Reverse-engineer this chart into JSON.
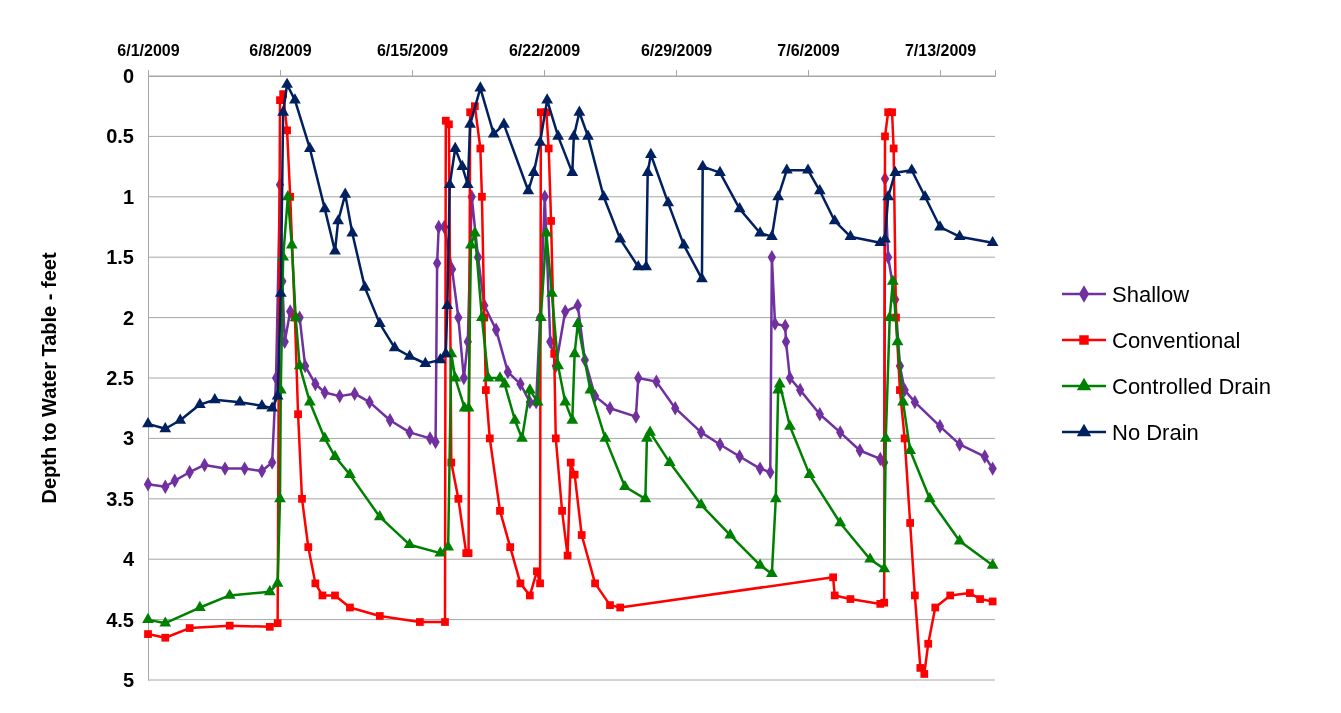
{
  "chart_data": {
    "type": "line",
    "ylabel": "Depth to Water Table - feet",
    "xlim": [
      "2009-06-01T00:00",
      "2009-07-15T22:00"
    ],
    "xticks": [
      {
        "value": "2009-06-01T00:00",
        "label": "6/1/2009"
      },
      {
        "value": "2009-06-08T00:00",
        "label": "6/8/2009"
      },
      {
        "value": "2009-06-15T00:00",
        "label": "6/15/2009"
      },
      {
        "value": "2009-06-22T00:00",
        "label": "6/22/2009"
      },
      {
        "value": "2009-06-29T00:00",
        "label": "6/29/2009"
      },
      {
        "value": "2009-07-06T00:00",
        "label": "7/6/2009"
      },
      {
        "value": "2009-07-13T00:00",
        "label": "7/13/2009"
      }
    ],
    "ylim": [
      5,
      0
    ],
    "yticks": [
      0,
      0.5,
      1,
      1.5,
      2,
      2.5,
      3,
      3.5,
      4,
      4.5,
      5
    ],
    "grid": "y",
    "legend": "right",
    "series": [
      {
        "name": "Shallow",
        "color": "#7030a0",
        "marker": "diamond",
        "x": [
          "2009-06-01T00:00",
          "2009-06-01T22:00",
          "2009-06-02T10:00",
          "2009-06-03T05:00",
          "2009-06-04T00:00",
          "2009-06-05T02:00",
          "2009-06-06T03:00",
          "2009-06-07T01:00",
          "2009-06-07T14:00",
          "2009-06-07T19:00",
          "2009-06-08T00:00",
          "2009-06-08T03:00",
          "2009-06-08T06:00",
          "2009-06-08T13:00",
          "2009-06-09T01:00",
          "2009-06-09T08:00",
          "2009-06-09T21:00",
          "2009-06-10T09:00",
          "2009-06-11T04:00",
          "2009-06-11T23:00",
          "2009-06-12T18:00",
          "2009-06-13T20:00",
          "2009-06-14T21:00",
          "2009-06-15T23:00",
          "2009-06-16T06:00",
          "2009-06-16T08:00",
          "2009-06-16T10:00",
          "2009-06-16T17:00",
          "2009-06-17T03:00",
          "2009-06-17T11:00",
          "2009-06-17T18:00",
          "2009-06-17T23:00",
          "2009-06-18T04:00",
          "2009-06-18T12:00",
          "2009-06-18T20:00",
          "2009-06-19T11:00",
          "2009-06-20T02:00",
          "2009-06-20T18:00",
          "2009-06-21T06:00",
          "2009-06-21T14:00",
          "2009-06-21T19:00",
          "2009-06-22T01:00",
          "2009-06-22T08:00",
          "2009-06-22T15:00",
          "2009-06-23T03:00",
          "2009-06-23T19:00",
          "2009-06-24T04:00",
          "2009-06-24T17:00",
          "2009-06-25T12:00",
          "2009-06-26T21:00",
          "2009-06-27T00:00",
          "2009-06-27T23:00",
          "2009-06-28T23:00",
          "2009-06-30T08:00",
          "2009-07-01T08:00",
          "2009-07-02T09:00",
          "2009-07-03T11:00",
          "2009-07-04T00:00",
          "2009-07-04T02:00",
          "2009-07-04T06:00",
          "2009-07-04T19:00",
          "2009-07-04T20:00",
          "2009-07-05T01:00",
          "2009-07-05T14:00",
          "2009-07-06T15:00",
          "2009-07-07T17:00",
          "2009-07-08T18:00",
          "2009-07-09T20:00",
          "2009-07-10T01:00",
          "2009-07-10T02:00",
          "2009-07-10T06:00",
          "2009-07-10T15:00",
          "2009-07-10T21:00",
          "2009-07-11T03:00",
          "2009-07-11T16:00",
          "2009-07-13T00:00",
          "2009-07-14T01:00",
          "2009-07-15T09:00",
          "2009-07-15T19:00"
        ],
        "values": [
          3.38,
          3.4,
          3.35,
          3.28,
          3.22,
          3.25,
          3.25,
          3.27,
          3.2,
          2.5,
          0.9,
          1.7,
          2.2,
          1.95,
          2.0,
          2.4,
          2.55,
          2.62,
          2.65,
          2.63,
          2.7,
          2.85,
          2.95,
          3.0,
          3.03,
          1.55,
          1.25,
          1.25,
          1.6,
          2.0,
          2.5,
          2.2,
          1.0,
          1.5,
          1.9,
          2.1,
          2.45,
          2.55,
          2.7,
          2.7,
          2.0,
          1.0,
          2.2,
          2.4,
          1.95,
          1.9,
          2.35,
          2.65,
          2.75,
          2.82,
          2.5,
          2.53,
          2.75,
          2.95,
          3.05,
          3.15,
          3.25,
          3.28,
          1.5,
          2.05,
          2.07,
          2.2,
          2.5,
          2.6,
          2.8,
          2.95,
          3.1,
          3.17,
          3.2,
          0.85,
          1.5,
          1.85,
          2.4,
          2.6,
          2.7,
          2.9,
          3.05,
          3.15,
          3.25
        ]
      },
      {
        "name": "Conventional",
        "color": "#ff0000",
        "marker": "square",
        "x": [
          "2009-06-01T00:00",
          "2009-06-01T22:00",
          "2009-06-03T05:00",
          "2009-06-05T08:00",
          "2009-06-07T11:00",
          "2009-06-07T21:00",
          "2009-06-08T00:00",
          "2009-06-08T04:00",
          "2009-06-08T09:00",
          "2009-06-08T13:00",
          "2009-06-08T19:00",
          "2009-06-08T23:00",
          "2009-06-09T04:00",
          "2009-06-09T12:00",
          "2009-06-09T21:00",
          "2009-06-10T06:00",
          "2009-06-10T22:00",
          "2009-06-11T17:00",
          "2009-06-13T07:00",
          "2009-06-15T10:00",
          "2009-06-16T18:00",
          "2009-06-16T19:00",
          "2009-06-16T23:00",
          "2009-06-17T02:00",
          "2009-06-17T11:00",
          "2009-06-17T21:00",
          "2009-06-18T00:00",
          "2009-06-18T02:00",
          "2009-06-18T08:00",
          "2009-06-18T15:00",
          "2009-06-18T17:00",
          "2009-06-18T20:00",
          "2009-06-18T22:00",
          "2009-06-19T03:00",
          "2009-06-19T16:00",
          "2009-06-20T05:00",
          "2009-06-20T18:00",
          "2009-06-21T06:00",
          "2009-06-21T15:00",
          "2009-06-21T19:00",
          "2009-06-21T20:00",
          "2009-06-22T03:00",
          "2009-06-22T06:00",
          "2009-06-22T09:00",
          "2009-06-22T13:00",
          "2009-06-22T15:00",
          "2009-06-22T23:00",
          "2009-06-23T06:00",
          "2009-06-23T10:00",
          "2009-06-23T15:00",
          "2009-06-24T00:00",
          "2009-06-24T17:00",
          "2009-06-25T12:00",
          "2009-06-26T01:00",
          "2009-07-07T08:00",
          "2009-07-07T10:00",
          "2009-07-08T06:00",
          "2009-07-09T20:00",
          "2009-07-10T01:00",
          "2009-07-10T02:00",
          "2009-07-10T06:00",
          "2009-07-10T11:00",
          "2009-07-10T13:00",
          "2009-07-10T16:00",
          "2009-07-10T21:00",
          "2009-07-11T03:00",
          "2009-07-11T10:00",
          "2009-07-11T16:00",
          "2009-07-11T23:00",
          "2009-07-12T04:00",
          "2009-07-12T09:00",
          "2009-07-12T18:00",
          "2009-07-13T13:00",
          "2009-07-14T14:00",
          "2009-07-15T03:00",
          "2009-07-15T19:00"
        ],
        "values": [
          4.62,
          4.65,
          4.57,
          4.55,
          4.56,
          4.53,
          0.2,
          0.15,
          0.45,
          1.0,
          2.0,
          2.8,
          3.5,
          3.9,
          4.2,
          4.3,
          4.3,
          4.4,
          4.47,
          4.52,
          4.52,
          0.37,
          0.4,
          3.2,
          3.5,
          3.95,
          3.95,
          0.3,
          0.25,
          0.6,
          1.0,
          2.0,
          2.6,
          3.0,
          3.6,
          3.9,
          4.2,
          4.3,
          4.1,
          4.2,
          0.3,
          0.3,
          0.6,
          1.2,
          2.3,
          3.0,
          3.6,
          3.97,
          3.2,
          3.3,
          3.8,
          4.2,
          4.38,
          4.4,
          4.15,
          4.3,
          4.33,
          4.37,
          4.36,
          0.5,
          0.3,
          0.3,
          0.6,
          2.0,
          2.6,
          3.0,
          3.7,
          4.3,
          4.9,
          4.95,
          4.7,
          4.4,
          4.3,
          4.28,
          4.33,
          4.35
        ]
      },
      {
        "name": "Controlled Drain",
        "color": "#008000",
        "marker": "triangle",
        "x": [
          "2009-06-01T00:00",
          "2009-06-01T22:00",
          "2009-06-03T18:00",
          "2009-06-05T08:00",
          "2009-06-07T11:00",
          "2009-06-07T21:00",
          "2009-06-08T00:00",
          "2009-06-08T01:00",
          "2009-06-08T04:00",
          "2009-06-08T10:00",
          "2009-06-08T15:00",
          "2009-06-08T20:00",
          "2009-06-09T01:00",
          "2009-06-09T14:00",
          "2009-06-10T09:00",
          "2009-06-10T22:00",
          "2009-06-11T17:00",
          "2009-06-13T07:00",
          "2009-06-14T21:00",
          "2009-06-16T12:00",
          "2009-06-16T22:00",
          "2009-06-17T02:00",
          "2009-06-17T07:00",
          "2009-06-17T19:00",
          "2009-06-18T00:00",
          "2009-06-18T03:00",
          "2009-06-18T08:00",
          "2009-06-18T17:00",
          "2009-06-19T01:00",
          "2009-06-19T16:00",
          "2009-06-19T22:00",
          "2009-06-20T11:00",
          "2009-06-20T20:00",
          "2009-06-21T06:00",
          "2009-06-21T16:00",
          "2009-06-21T20:00",
          "2009-06-22T03:00",
          "2009-06-22T10:00",
          "2009-06-22T18:00",
          "2009-06-23T03:00",
          "2009-06-23T12:00",
          "2009-06-23T15:00",
          "2009-06-23T19:00",
          "2009-06-24T11:00",
          "2009-06-25T06:00",
          "2009-06-26T07:00",
          "2009-06-27T09:00",
          "2009-06-27T11:00",
          "2009-06-27T15:00",
          "2009-06-28T16:00",
          "2009-06-30T08:00",
          "2009-07-01T21:00",
          "2009-07-03T11:00",
          "2009-07-04T02:00",
          "2009-07-04T07:00",
          "2009-07-04T10:00",
          "2009-07-04T12:00",
          "2009-07-05T01:00",
          "2009-07-06T02:00",
          "2009-07-07T17:00",
          "2009-07-09T07:00",
          "2009-07-10T01:00",
          "2009-07-10T03:00",
          "2009-07-10T08:00",
          "2009-07-10T12:00",
          "2009-07-10T18:00",
          "2009-07-11T01:00",
          "2009-07-11T10:00",
          "2009-07-12T11:00",
          "2009-07-14T01:00",
          "2009-07-15T19:00"
        ],
        "values": [
          4.5,
          4.53,
          4.4,
          4.3,
          4.27,
          4.2,
          3.5,
          2.6,
          1.5,
          1.0,
          1.4,
          2.0,
          2.4,
          2.7,
          3.0,
          3.15,
          3.3,
          3.65,
          3.88,
          3.95,
          3.9,
          2.3,
          2.5,
          2.75,
          2.75,
          1.4,
          1.3,
          2.0,
          2.5,
          2.5,
          2.55,
          2.85,
          3.0,
          2.6,
          2.7,
          2.0,
          1.3,
          1.8,
          2.4,
          2.7,
          2.85,
          2.3,
          2.05,
          2.6,
          3.0,
          3.4,
          3.5,
          3.0,
          2.95,
          3.2,
          3.55,
          3.8,
          4.05,
          4.12,
          3.5,
          2.6,
          2.55,
          2.9,
          3.3,
          3.7,
          4.0,
          4.08,
          3.0,
          2.0,
          1.7,
          2.2,
          2.7,
          3.1,
          3.5,
          3.85,
          4.05
        ]
      },
      {
        "name": "No Drain",
        "color": "#002060",
        "marker": "triangle",
        "x": [
          "2009-06-01T00:00",
          "2009-06-01T22:00",
          "2009-06-02T17:00",
          "2009-06-03T18:00",
          "2009-06-04T13:00",
          "2009-06-05T21:00",
          "2009-06-07T01:00",
          "2009-06-07T14:00",
          "2009-06-07T21:00",
          "2009-06-08T01:00",
          "2009-06-08T04:00",
          "2009-06-08T09:00",
          "2009-06-08T19:00",
          "2009-06-09T14:00",
          "2009-06-10T09:00",
          "2009-06-10T22:00",
          "2009-06-11T02:00",
          "2009-06-11T11:00",
          "2009-06-11T20:00",
          "2009-06-12T12:00",
          "2009-06-13T07:00",
          "2009-06-14T02:00",
          "2009-06-14T21:00",
          "2009-06-15T17:00",
          "2009-06-16T12:00",
          "2009-06-16T19:00",
          "2009-06-16T21:00",
          "2009-06-17T00:00",
          "2009-06-17T07:00",
          "2009-06-17T16:00",
          "2009-06-17T23:00",
          "2009-06-18T02:00",
          "2009-06-18T15:00",
          "2009-06-19T08:00",
          "2009-06-19T21:00",
          "2009-06-21T04:00",
          "2009-06-21T11:00",
          "2009-06-21T19:00",
          "2009-06-22T04:00",
          "2009-06-22T18:00",
          "2009-06-23T12:00",
          "2009-06-23T14:00",
          "2009-06-23T21:00",
          "2009-06-24T08:00",
          "2009-06-25T04:00",
          "2009-06-26T01:00",
          "2009-06-27T00:00",
          "2009-06-27T10:00",
          "2009-06-27T12:00",
          "2009-06-27T16:00",
          "2009-06-28T14:00",
          "2009-06-29T10:00",
          "2009-06-30T09:00",
          "2009-06-30T10:00",
          "2009-07-01T08:00",
          "2009-07-02T09:00",
          "2009-07-03T11:00",
          "2009-07-04T02:00",
          "2009-07-04T10:00",
          "2009-07-04T21:00",
          "2009-07-06T00:00",
          "2009-07-06T15:00",
          "2009-07-07T10:00",
          "2009-07-08T06:00",
          "2009-07-09T20:00",
          "2009-07-10T02:00",
          "2009-07-10T06:00",
          "2009-07-10T15:00",
          "2009-07-11T12:00",
          "2009-07-12T05:00",
          "2009-07-13T00:00",
          "2009-07-14T01:00",
          "2009-07-15T19:00"
        ],
        "values": [
          2.88,
          2.92,
          2.85,
          2.72,
          2.68,
          2.7,
          2.73,
          2.75,
          2.65,
          1.8,
          0.3,
          0.07,
          0.2,
          0.6,
          1.1,
          1.45,
          1.2,
          0.98,
          1.3,
          1.75,
          2.05,
          2.25,
          2.32,
          2.38,
          2.35,
          2.3,
          1.9,
          0.9,
          0.6,
          0.75,
          0.9,
          0.4,
          0.1,
          0.48,
          0.4,
          0.95,
          0.8,
          0.55,
          0.2,
          0.5,
          0.8,
          0.5,
          0.3,
          0.5,
          1.0,
          1.35,
          1.58,
          1.58,
          0.8,
          0.65,
          1.05,
          1.4,
          1.68,
          0.75,
          0.8,
          1.1,
          1.3,
          1.33,
          1.0,
          0.78,
          0.78,
          0.95,
          1.2,
          1.33,
          1.38,
          1.35,
          1.0,
          0.8,
          0.78,
          1.0,
          1.25,
          1.33,
          1.38
        ]
      }
    ]
  }
}
